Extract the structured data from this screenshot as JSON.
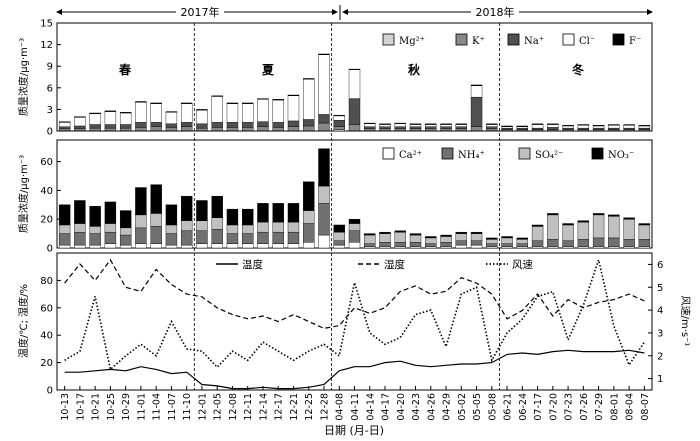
{
  "chart_data": [
    {
      "type": "bar",
      "stacked": true,
      "ylabel": "质量浓度/μg·m⁻³",
      "ylim": [
        0,
        15
      ],
      "yticks": [
        0,
        3,
        6,
        9,
        12,
        15
      ],
      "x_ticks": [
        "10-13",
        "10-17",
        "10-21",
        "10-25",
        "10-29",
        "11-01",
        "11-04",
        "11-07",
        "11-10",
        "12-01",
        "12-05",
        "12-08",
        "12-11",
        "12-14",
        "12-17",
        "12-21",
        "12-25",
        "12-28",
        "04-08",
        "04-11",
        "04-14",
        "04-17",
        "04-20",
        "04-23",
        "04-26",
        "04-29",
        "05-02",
        "05-05",
        "05-08",
        "06-21",
        "06-24",
        "07-17",
        "07-20",
        "07-23",
        "07-26",
        "07-29",
        "08-01",
        "08-04",
        "08-07"
      ],
      "years": [
        "2017年",
        "2018年"
      ],
      "seasons": [
        "春",
        "夏",
        "秋",
        "冬"
      ],
      "series": [
        {
          "name": "Mg²⁺",
          "color": "#d3d3d3",
          "values": [
            0.1,
            0.1,
            0.1,
            0.1,
            0.1,
            0.1,
            0.1,
            0.1,
            0.1,
            0.1,
            0.1,
            0.1,
            0.1,
            0.1,
            0.1,
            0.1,
            0.1,
            0.1,
            0.2,
            0.1,
            0.1,
            0.1,
            0.1,
            0.1,
            0.1,
            0.1,
            0.1,
            0.1,
            0.1,
            0.1,
            0.1,
            0.1,
            0.1,
            0.1,
            0.1,
            0.1,
            0.1,
            0.1,
            0.1
          ]
        },
        {
          "name": "K⁺",
          "color": "#888888",
          "values": [
            0.2,
            0.2,
            0.3,
            0.3,
            0.3,
            0.4,
            0.5,
            0.4,
            0.5,
            0.3,
            0.4,
            0.4,
            0.4,
            0.5,
            0.4,
            0.5,
            0.6,
            1.0,
            0.4,
            0.8,
            0.2,
            0.2,
            0.2,
            0.2,
            0.2,
            0.2,
            0.2,
            0.5,
            0.2,
            0.1,
            0.1,
            0.1,
            0.1,
            0.1,
            0.1,
            0.1,
            0.1,
            0.1,
            0.1
          ]
        },
        {
          "name": "Na⁺",
          "color": "#505050",
          "values": [
            0.3,
            0.4,
            0.5,
            0.5,
            0.5,
            0.7,
            0.6,
            0.5,
            0.6,
            0.6,
            0.7,
            0.7,
            0.7,
            0.7,
            0.7,
            0.8,
            0.9,
            1.2,
            0.9,
            3.6,
            0.3,
            0.3,
            0.3,
            0.3,
            0.3,
            0.3,
            0.3,
            4.1,
            0.3,
            0.2,
            0.2,
            0.2,
            0.3,
            0.2,
            0.2,
            0.2,
            0.2,
            0.2,
            0.2
          ]
        },
        {
          "name": "Cl⁻",
          "color": "#ffffff",
          "values": [
            0.6,
            1.2,
            1.5,
            1.8,
            1.6,
            2.8,
            2.6,
            1.6,
            2.6,
            1.9,
            3.6,
            2.6,
            2.6,
            3.1,
            3.1,
            3.5,
            5.6,
            8.3,
            0.6,
            4.0,
            0.4,
            0.3,
            0.4,
            0.3,
            0.3,
            0.3,
            0.3,
            1.6,
            0.3,
            0.2,
            0.2,
            0.5,
            0.4,
            0.3,
            0.4,
            0.3,
            0.4,
            0.4,
            0.3
          ]
        },
        {
          "name": "F⁻",
          "color": "#000000",
          "values": [
            0.1,
            0.1,
            0.1,
            0.1,
            0.1,
            0.1,
            0.1,
            0.1,
            0.1,
            0.1,
            0.1,
            0.1,
            0.1,
            0.1,
            0.1,
            0.1,
            0.1,
            0.1,
            0.1,
            0.1,
            0.1,
            0.1,
            0.1,
            0.1,
            0.1,
            0.1,
            0.1,
            0.1,
            0.1,
            0.1,
            0.1,
            0.1,
            0.1,
            0.1,
            0.1,
            0.1,
            0.1,
            0.1,
            0.1
          ]
        }
      ]
    },
    {
      "type": "bar",
      "stacked": true,
      "ylabel": "质量浓度/μg·m⁻³",
      "ylim": [
        0,
        75
      ],
      "yticks": [
        0,
        20,
        40,
        60
      ],
      "series": [
        {
          "name": "Ca²⁺",
          "color": "#ffffff",
          "values": [
            2,
            2,
            2,
            3,
            2,
            3,
            3,
            2,
            2,
            3,
            3,
            3,
            3,
            3,
            3,
            3,
            4,
            9,
            2,
            4,
            1,
            1,
            1,
            1,
            1,
            1,
            2,
            2,
            1,
            1,
            1,
            1,
            1,
            1,
            1,
            1,
            1,
            1,
            1
          ]
        },
        {
          "name": "NH₄⁺",
          "color": "#707070",
          "values": [
            8,
            9,
            8,
            8,
            7,
            11,
            12,
            8,
            10,
            9,
            10,
            7,
            7,
            8,
            8,
            8,
            13,
            22,
            3,
            8,
            2,
            3,
            3,
            3,
            2,
            3,
            3,
            3,
            2,
            2,
            2,
            4,
            5,
            4,
            5,
            6,
            6,
            5,
            5
          ]
        },
        {
          "name": "SO₄²⁻",
          "color": "#c0c0c0",
          "values": [
            6,
            6,
            5,
            6,
            5,
            9,
            9,
            6,
            7,
            7,
            8,
            6,
            6,
            7,
            7,
            7,
            9,
            12,
            6,
            5,
            6,
            6,
            7,
            5,
            4,
            4,
            5,
            5,
            3,
            4,
            3,
            10,
            17,
            11,
            12,
            16,
            15,
            14,
            10
          ]
        },
        {
          "name": "NO₃⁻",
          "color": "#000000",
          "values": [
            14,
            16,
            14,
            15,
            12,
            19,
            20,
            14,
            17,
            14,
            15,
            11,
            11,
            13,
            13,
            13,
            20,
            26,
            5,
            3,
            1,
            1,
            1,
            1,
            1,
            1,
            1,
            1,
            1,
            1,
            1,
            1,
            1,
            1,
            1,
            1,
            1,
            1,
            1
          ]
        }
      ]
    },
    {
      "type": "line",
      "xlabel": "日期 (月-日)",
      "ylabel_left": "温度/℃; 湿度/%",
      "ylabel_right": "风速/m·s⁻¹",
      "ylim_left": [
        0,
        100
      ],
      "yticks_left": [
        0,
        20,
        40,
        60,
        80
      ],
      "ylim_right": [
        0.5,
        6.5
      ],
      "yticks_right": [
        1,
        2,
        3,
        4,
        5,
        6
      ],
      "series": [
        {
          "name": "温度",
          "axis": "left",
          "style": "solid",
          "values": [
            13,
            13,
            14,
            15,
            14,
            17,
            15,
            12,
            13,
            4,
            3,
            1,
            1,
            2,
            1,
            1,
            2,
            4,
            14,
            17,
            17,
            20,
            21,
            18,
            17,
            18,
            19,
            19,
            20,
            26,
            27,
            26,
            28,
            29,
            28,
            28,
            28,
            29,
            27
          ]
        },
        {
          "name": "湿度",
          "axis": "left",
          "style": "dashed",
          "values": [
            78,
            92,
            80,
            95,
            75,
            72,
            88,
            77,
            70,
            68,
            60,
            55,
            52,
            54,
            50,
            55,
            50,
            45,
            47,
            60,
            56,
            60,
            72,
            76,
            70,
            72,
            82,
            78,
            70,
            52,
            58,
            70,
            54,
            66,
            60,
            64,
            66,
            70,
            65
          ]
        },
        {
          "name": "风速",
          "axis": "right",
          "style": "dotted",
          "values": [
            1.8,
            2.2,
            4.6,
            1.4,
            2.0,
            2.5,
            2.0,
            3.5,
            2.3,
            2.2,
            1.5,
            2.2,
            1.8,
            2.6,
            2.2,
            1.8,
            2.2,
            2.5,
            2.0,
            5.2,
            3.0,
            2.5,
            2.8,
            3.8,
            4.0,
            2.4,
            4.7,
            5.0,
            1.8,
            3.0,
            3.6,
            4.6,
            4.8,
            2.7,
            4.2,
            6.2,
            3.3,
            1.6,
            2.6
          ]
        }
      ]
    }
  ]
}
